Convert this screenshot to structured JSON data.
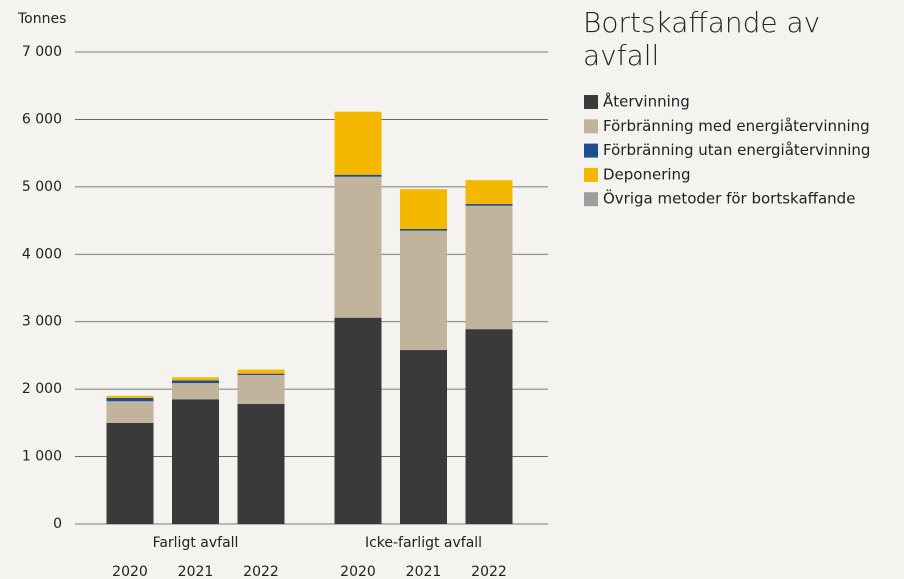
{
  "chart_data": {
    "type": "stacked_bar",
    "title": "Bortskaffande av avfall",
    "y_label": "Tonnes",
    "groups": [
      {
        "name": "Farligt avfall",
        "categories": [
          "2020",
          "2021",
          "2022"
        ]
      },
      {
        "name": "Icke-farligt avfall",
        "categories": [
          "2020",
          "2021",
          "2022"
        ]
      }
    ],
    "series": [
      {
        "name": "Återvinning",
        "color": "#3a3a3a",
        "values": [
          1500,
          1850,
          1780,
          3060,
          2580,
          2890
        ]
      },
      {
        "name": "Förbränning med energiåtervinning",
        "color": "#c2b39c",
        "values": [
          320,
          240,
          430,
          2090,
          1770,
          1830
        ]
      },
      {
        "name": "Förbränning utan energiåtervinning",
        "color": "#1f4e8c",
        "values": [
          50,
          40,
          20,
          30,
          25,
          25
        ]
      },
      {
        "name": "Deponering",
        "color": "#f5b800",
        "values": [
          30,
          45,
          60,
          935,
          590,
          355
        ]
      },
      {
        "name": "Övriga metoder för bortskaffande",
        "color": "#9e9e9e",
        "values": [
          0,
          0,
          0,
          0,
          0,
          0
        ]
      }
    ],
    "ylim": [
      0,
      7000
    ],
    "yticks": [
      0,
      {
        "value": 1000,
        "label": "1 000"
      },
      {
        "value": 2000,
        "label": "2 000"
      },
      {
        "value": 3000,
        "label": "3 000"
      },
      {
        "value": 4000,
        "label": "4 000"
      },
      {
        "value": 5000,
        "label": "5 000"
      },
      {
        "value": 6000,
        "label": "6 000"
      },
      {
        "value": 7000,
        "label": "7 000"
      }
    ],
    "grid": true
  }
}
